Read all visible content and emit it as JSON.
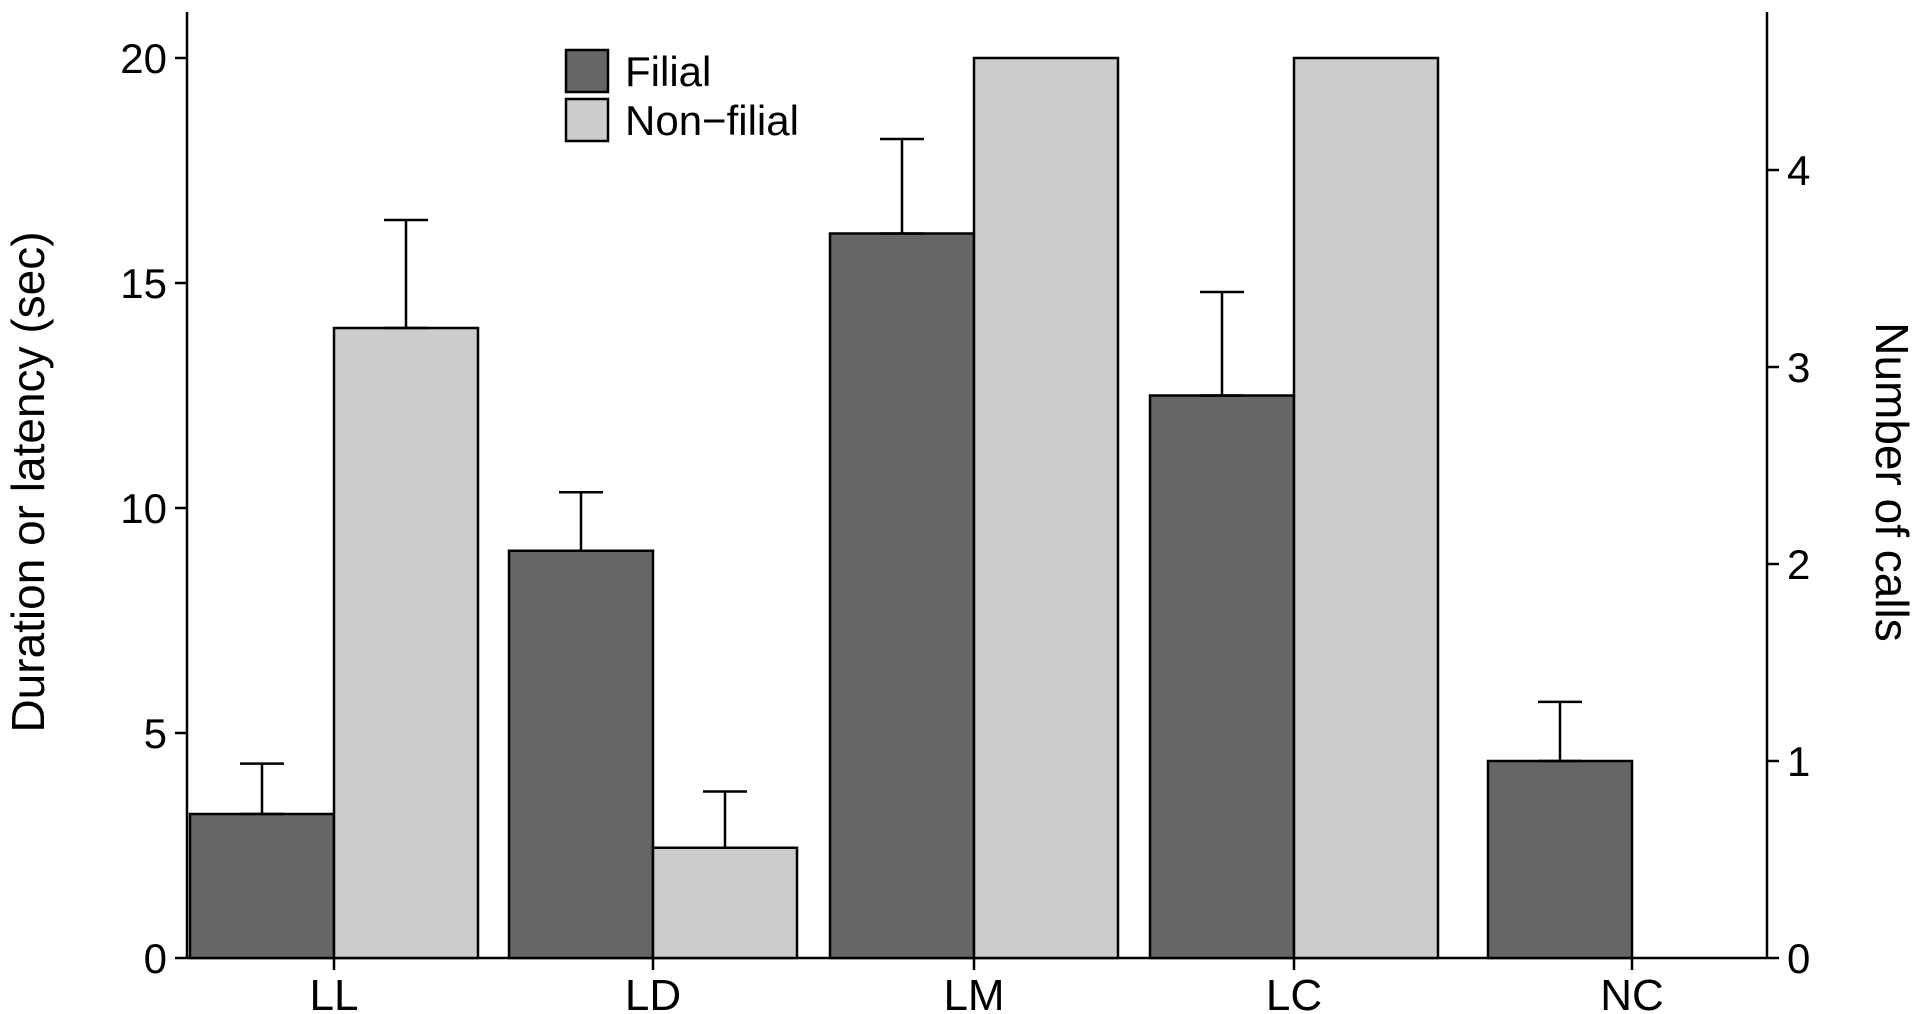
{
  "chart_data": {
    "type": "bar",
    "categories": [
      "LL",
      "LD",
      "LM",
      "LC",
      "NC"
    ],
    "ylabel": "Duration or latency (sec)",
    "y2label": "Number of calls",
    "ylim": [
      0,
      20
    ],
    "y2lim": [
      0,
      4.8
    ],
    "yticks": [
      "0",
      "5",
      "10",
      "15",
      "20"
    ],
    "y2ticks": [
      "0",
      "1",
      "2",
      "3",
      "4"
    ],
    "legend_position": "top-center",
    "grid": false,
    "secondary_axis_categories": [
      "NC"
    ],
    "series": [
      {
        "name": "Filial",
        "color": "#666666",
        "values": [
          3.2,
          9.05,
          16.1,
          12.5,
          1.0
        ],
        "errors": [
          1.12,
          1.3,
          2.1,
          2.3,
          0.3
        ]
      },
      {
        "name": "Non−filial",
        "color": "#cccccc",
        "values": [
          14.0,
          2.45,
          20.0,
          20.0,
          0.0
        ],
        "errors": [
          2.4,
          1.25,
          0,
          0,
          0
        ]
      }
    ]
  }
}
